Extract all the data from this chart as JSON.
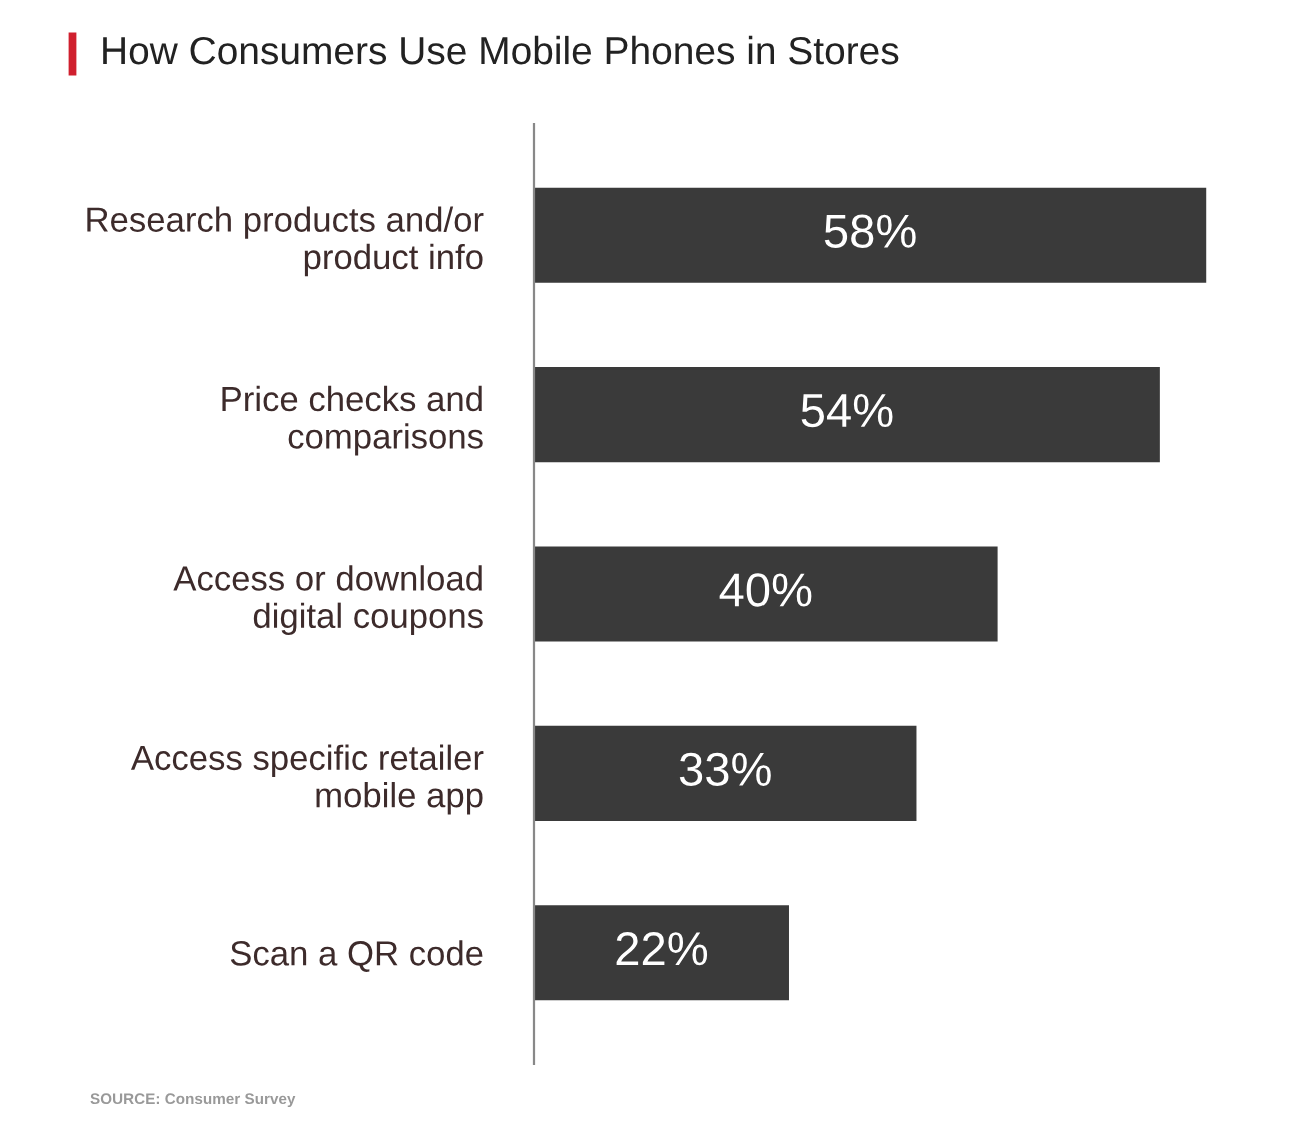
{
  "chart_data": {
    "type": "bar",
    "orientation": "horizontal",
    "title": "How Consumers Use Mobile Phones in Stores",
    "categories": [
      "Research products and/or\nproduct info",
      "Price checks and\ncomparisons",
      "Access or download\ndigital coupons",
      "Access specific retailer\nmobile app",
      "Scan a QR code"
    ],
    "values": [
      58,
      54,
      40,
      33,
      22
    ],
    "value_labels": [
      "58%",
      "54%",
      "40%",
      "33%",
      "22%"
    ],
    "color": "#3a3a3a",
    "grid": false,
    "legend": false,
    "tick_labels": "y",
    "annotations": [
      "SOURCE: Consumer Survey"
    ]
  }
}
